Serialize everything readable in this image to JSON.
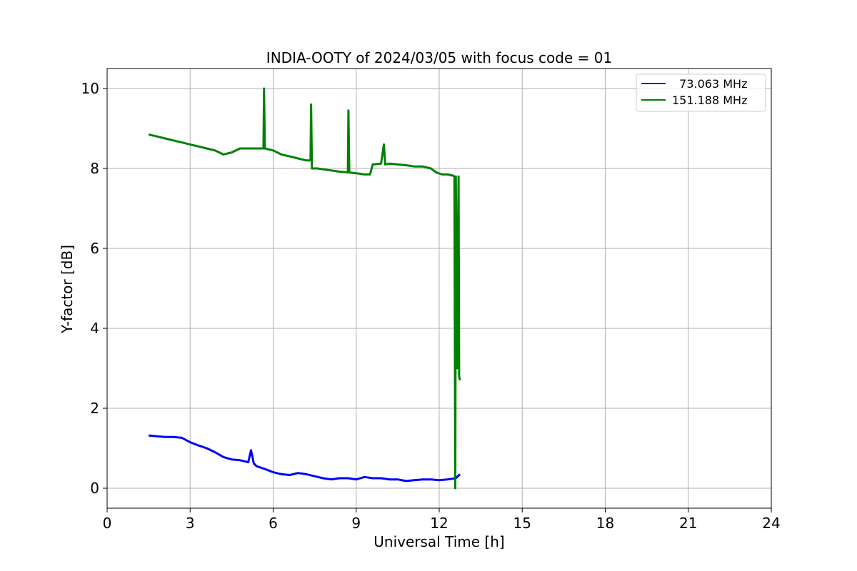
{
  "chart_data": {
    "type": "line",
    "title": "INDIA-OOTY of 2024/03/05 with focus code = 01",
    "xlabel": "Universal Time [h]",
    "ylabel": "Y-factor [dB]",
    "xlim": [
      0,
      24
    ],
    "ylim": [
      -0.5,
      10.5
    ],
    "xticks": [
      0,
      3,
      6,
      9,
      12,
      15,
      18,
      21,
      24
    ],
    "yticks": [
      0,
      2,
      4,
      6,
      8,
      10
    ],
    "grid": true,
    "legend_position": "top-right",
    "series": [
      {
        "name": "  73.063 MHz",
        "color": "#0000ff",
        "x": [
          1.5,
          1.8,
          2.1,
          2.4,
          2.7,
          3.0,
          3.3,
          3.6,
          3.9,
          4.2,
          4.5,
          4.8,
          5.1,
          5.2,
          5.3,
          5.4,
          5.7,
          6.0,
          6.3,
          6.6,
          6.9,
          7.2,
          7.5,
          7.8,
          8.1,
          8.4,
          8.7,
          9.0,
          9.3,
          9.6,
          9.9,
          10.2,
          10.5,
          10.8,
          11.1,
          11.4,
          11.7,
          12.0,
          12.3,
          12.6,
          12.75
        ],
        "y": [
          1.32,
          1.3,
          1.28,
          1.28,
          1.26,
          1.15,
          1.07,
          1.0,
          0.9,
          0.78,
          0.72,
          0.7,
          0.65,
          0.95,
          0.62,
          0.55,
          0.48,
          0.4,
          0.35,
          0.33,
          0.38,
          0.35,
          0.3,
          0.25,
          0.22,
          0.25,
          0.25,
          0.22,
          0.28,
          0.25,
          0.25,
          0.22,
          0.22,
          0.18,
          0.2,
          0.22,
          0.22,
          0.2,
          0.22,
          0.25,
          0.35
        ]
      },
      {
        "name": "151.188 MHz",
        "color": "#008000",
        "x": [
          1.5,
          1.8,
          2.1,
          2.4,
          2.7,
          3.0,
          3.3,
          3.6,
          3.9,
          4.2,
          4.5,
          4.8,
          5.1,
          5.4,
          5.65,
          5.67,
          5.7,
          6.0,
          6.3,
          6.6,
          6.9,
          7.2,
          7.35,
          7.37,
          7.4,
          7.6,
          7.8,
          8.1,
          8.4,
          8.7,
          8.72,
          8.75,
          9.0,
          9.3,
          9.5,
          9.6,
          9.9,
          10.0,
          10.05,
          10.2,
          10.5,
          10.8,
          11.1,
          11.4,
          11.7,
          11.9,
          12.1,
          12.3,
          12.5,
          12.55,
          12.58,
          12.6,
          12.65,
          12.7,
          12.72,
          12.75
        ],
        "y": [
          8.85,
          8.8,
          8.75,
          8.7,
          8.65,
          8.6,
          8.55,
          8.5,
          8.45,
          8.35,
          8.4,
          8.5,
          8.5,
          8.5,
          8.5,
          10.0,
          8.5,
          8.45,
          8.35,
          8.3,
          8.25,
          8.2,
          8.2,
          9.6,
          8.0,
          8.0,
          7.98,
          7.95,
          7.92,
          7.9,
          9.45,
          7.9,
          7.88,
          7.85,
          7.85,
          8.1,
          8.12,
          8.6,
          8.1,
          8.12,
          8.1,
          8.08,
          8.05,
          8.05,
          8.0,
          7.9,
          7.85,
          7.85,
          7.82,
          7.8,
          0.0,
          7.8,
          3.0,
          7.8,
          2.8,
          2.7
        ]
      }
    ]
  }
}
